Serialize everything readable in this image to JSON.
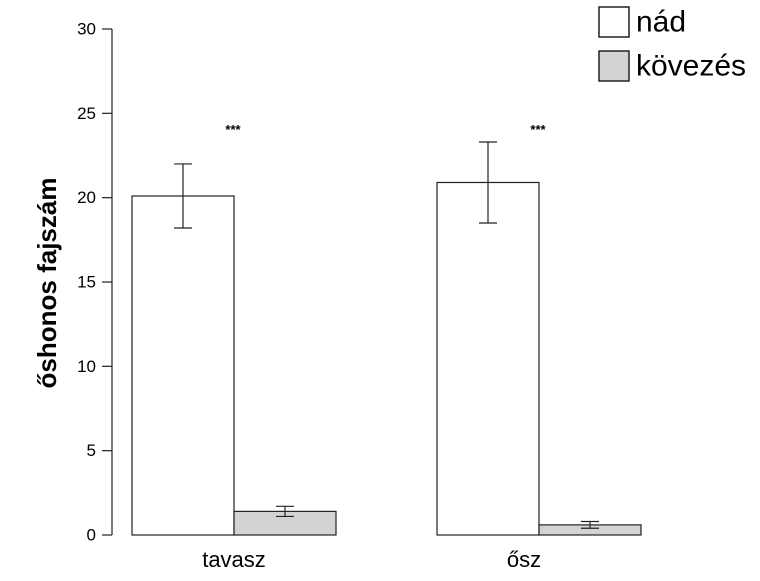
{
  "chart_data": {
    "type": "bar",
    "categories": [
      "tavasz",
      "ősz"
    ],
    "series": [
      {
        "name": "nád",
        "color": "#ffffff",
        "values": [
          20.1,
          20.9
        ],
        "error_low": [
          18.2,
          18.5
        ],
        "error_high": [
          22.0,
          23.3
        ]
      },
      {
        "name": "kövezés",
        "color": "#d3d3d3",
        "values": [
          1.4,
          0.6
        ],
        "error_low": [
          1.1,
          0.4
        ],
        "error_high": [
          1.7,
          0.8
        ]
      }
    ],
    "annotations": [
      "***",
      "***"
    ],
    "ylabel": "őshonos fajszám",
    "xlabel": "",
    "ylim": [
      0,
      30
    ],
    "yticks": [
      0,
      5,
      10,
      15,
      20,
      25,
      30
    ],
    "grid": false,
    "legend_position": "top-right"
  }
}
